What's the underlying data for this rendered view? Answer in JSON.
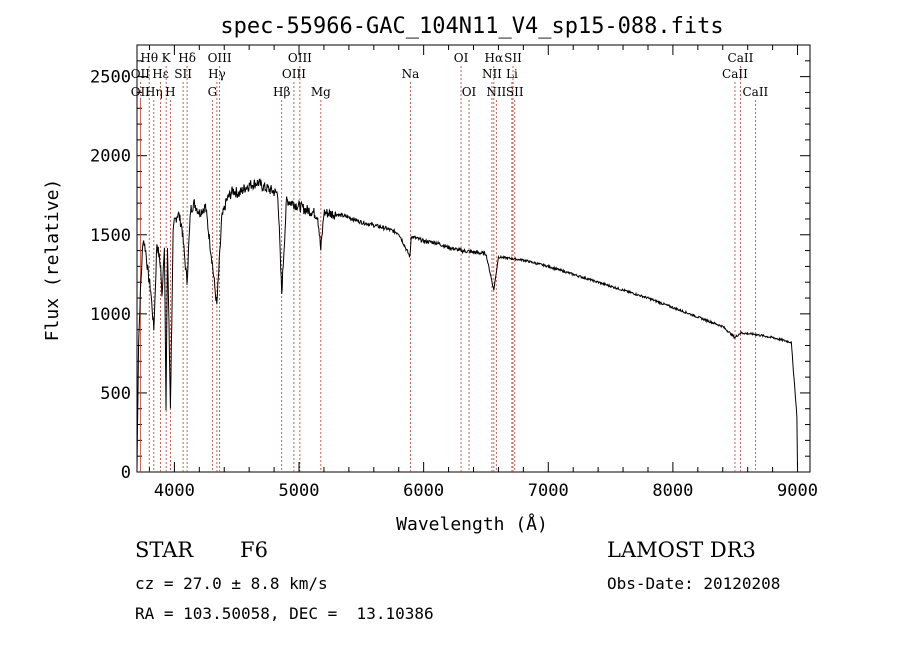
{
  "chart_data": {
    "type": "line",
    "title": "spec-55966-GAC_104N11_V4_sp15-088.fits",
    "xlabel": "Wavelength (Å)",
    "ylabel": "Flux (relative)",
    "xlim": [
      3700,
      9100
    ],
    "ylim": [
      0,
      2700
    ],
    "xticks": [
      4000,
      5000,
      6000,
      7000,
      8000,
      9000
    ],
    "yticks": [
      0,
      500,
      1000,
      1500,
      2000,
      2500
    ],
    "grid": false,
    "series": [
      {
        "name": "spectrum",
        "x": [
          3700,
          3712,
          3730,
          3750,
          3770,
          3790,
          3810,
          3835,
          3860,
          3890,
          3900,
          3920,
          3933,
          3945,
          3968,
          3990,
          4000,
          4030,
          4060,
          4101,
          4130,
          4160,
          4200,
          4250,
          4300,
          4340,
          4380,
          4420,
          4470,
          4520,
          4570,
          4620,
          4670,
          4720,
          4780,
          4830,
          4861,
          4900,
          4950,
          5000,
          5050,
          5100,
          5150,
          5175,
          5200,
          5300,
          5400,
          5500,
          5600,
          5700,
          5800,
          5890,
          5900,
          6000,
          6100,
          6200,
          6300,
          6400,
          6500,
          6563,
          6600,
          6700,
          6800,
          7000,
          7200,
          7400,
          7600,
          7800,
          8000,
          8200,
          8400,
          8498,
          8542,
          8662,
          8800,
          8950,
          8995,
          9000
        ],
        "y": [
          20,
          800,
          1180,
          1480,
          1400,
          1250,
          1150,
          900,
          1450,
          1300,
          1100,
          1450,
          380,
          1420,
          420,
          1500,
          1580,
          1640,
          1550,
          1200,
          1660,
          1700,
          1640,
          1680,
          1350,
          1050,
          1600,
          1720,
          1780,
          1760,
          1800,
          1820,
          1830,
          1800,
          1780,
          1760,
          1130,
          1720,
          1700,
          1680,
          1660,
          1650,
          1620,
          1400,
          1640,
          1630,
          1610,
          1580,
          1560,
          1540,
          1510,
          1360,
          1490,
          1460,
          1450,
          1420,
          1400,
          1390,
          1380,
          1150,
          1360,
          1350,
          1340,
          1300,
          1250,
          1200,
          1150,
          1100,
          1040,
          980,
          920,
          850,
          880,
          870,
          850,
          820,
          350,
          20
        ]
      }
    ],
    "lines": [
      {
        "label": "Hθ",
        "wl": 3798,
        "row": 1
      },
      {
        "label": "OII",
        "wl": 3727,
        "row": 2
      },
      {
        "label": "OII",
        "wl": 3727,
        "row": 3
      },
      {
        "label": "Hη",
        "wl": 3835,
        "row": 3
      },
      {
        "label": "K",
        "wl": 3934,
        "row": 1
      },
      {
        "label": "Hε",
        "wl": 3889,
        "row": 2
      },
      {
        "label": "H",
        "wl": 3968,
        "row": 3
      },
      {
        "label": "SII",
        "wl": 4070,
        "row": 2
      },
      {
        "label": "Hδ",
        "wl": 4102,
        "row": 1
      },
      {
        "label": "OIII",
        "wl": 4363,
        "row": 1
      },
      {
        "label": "Hγ",
        "wl": 4341,
        "row": 2
      },
      {
        "label": "G",
        "wl": 4305,
        "row": 3
      },
      {
        "label": "Hβ",
        "wl": 4861,
        "row": 3
      },
      {
        "label": "OIII",
        "wl": 5007,
        "row": 1
      },
      {
        "label": "OIII",
        "wl": 4959,
        "row": 2
      },
      {
        "label": "Mg",
        "wl": 5175,
        "row": 3
      },
      {
        "label": "Na",
        "wl": 5894,
        "row": 2
      },
      {
        "label": "OI",
        "wl": 6300,
        "row": 1
      },
      {
        "label": "OI",
        "wl": 6364,
        "row": 3
      },
      {
        "label": "Hα",
        "wl": 6563,
        "row": 1
      },
      {
        "label": "NII",
        "wl": 6548,
        "row": 2
      },
      {
        "label": "NII",
        "wl": 6583,
        "row": 3
      },
      {
        "label": "SII",
        "wl": 6717,
        "row": 1
      },
      {
        "label": "Li",
        "wl": 6708,
        "row": 2
      },
      {
        "label": "SII",
        "wl": 6731,
        "row": 3
      },
      {
        "label": "CaII",
        "wl": 8542,
        "row": 1
      },
      {
        "label": "CaII",
        "wl": 8498,
        "row": 2
      },
      {
        "label": "CaII",
        "wl": 8662,
        "row": 3
      }
    ]
  },
  "info": {
    "object_class": "STAR",
    "subclass": "F6",
    "survey": "LAMOST DR3",
    "cz": "cz = 27.0 ± 8.8 km/s",
    "obs_date": "Obs-Date: 20120208",
    "coords": "RA = 103.50058, DEC =  13.10386"
  },
  "colors": {
    "line_markers": "#c0392b",
    "spectrum": "#000000"
  }
}
